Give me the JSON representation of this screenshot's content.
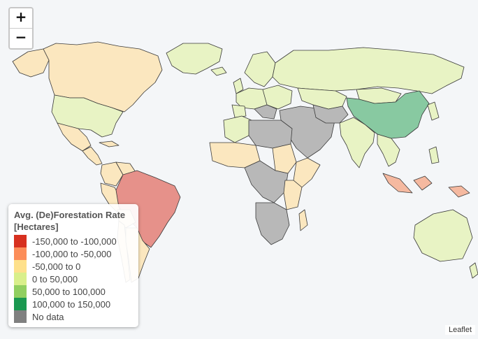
{
  "zoom": {
    "in_label": "+",
    "out_label": "−"
  },
  "legend": {
    "title": "Avg. (De)Forestation Rate [Hectares]",
    "items": [
      {
        "label": "-150,000 to -100,000",
        "color": "#d7301f"
      },
      {
        "label": "-100,000 to -50,000",
        "color": "#fc8d59"
      },
      {
        "label": "-50,000 to 0",
        "color": "#fee08b"
      },
      {
        "label": "0 to 50,000",
        "color": "#d9ef8b"
      },
      {
        "label": "50,000 to 100,000",
        "color": "#91cf60"
      },
      {
        "label": "100,000 to 150,000",
        "color": "#1a9850"
      },
      {
        "label": "No data",
        "color": "#808080"
      }
    ]
  },
  "attribution": "Leaflet",
  "colors": {
    "ocean": "#f4f6f8",
    "light_green": "#e8f3c4",
    "light_orange": "#fbe7bf",
    "salmon": "#f5b9a0",
    "red": "#e6918a",
    "china_green": "#88c9a1",
    "no_data": "#b8b8b8"
  }
}
